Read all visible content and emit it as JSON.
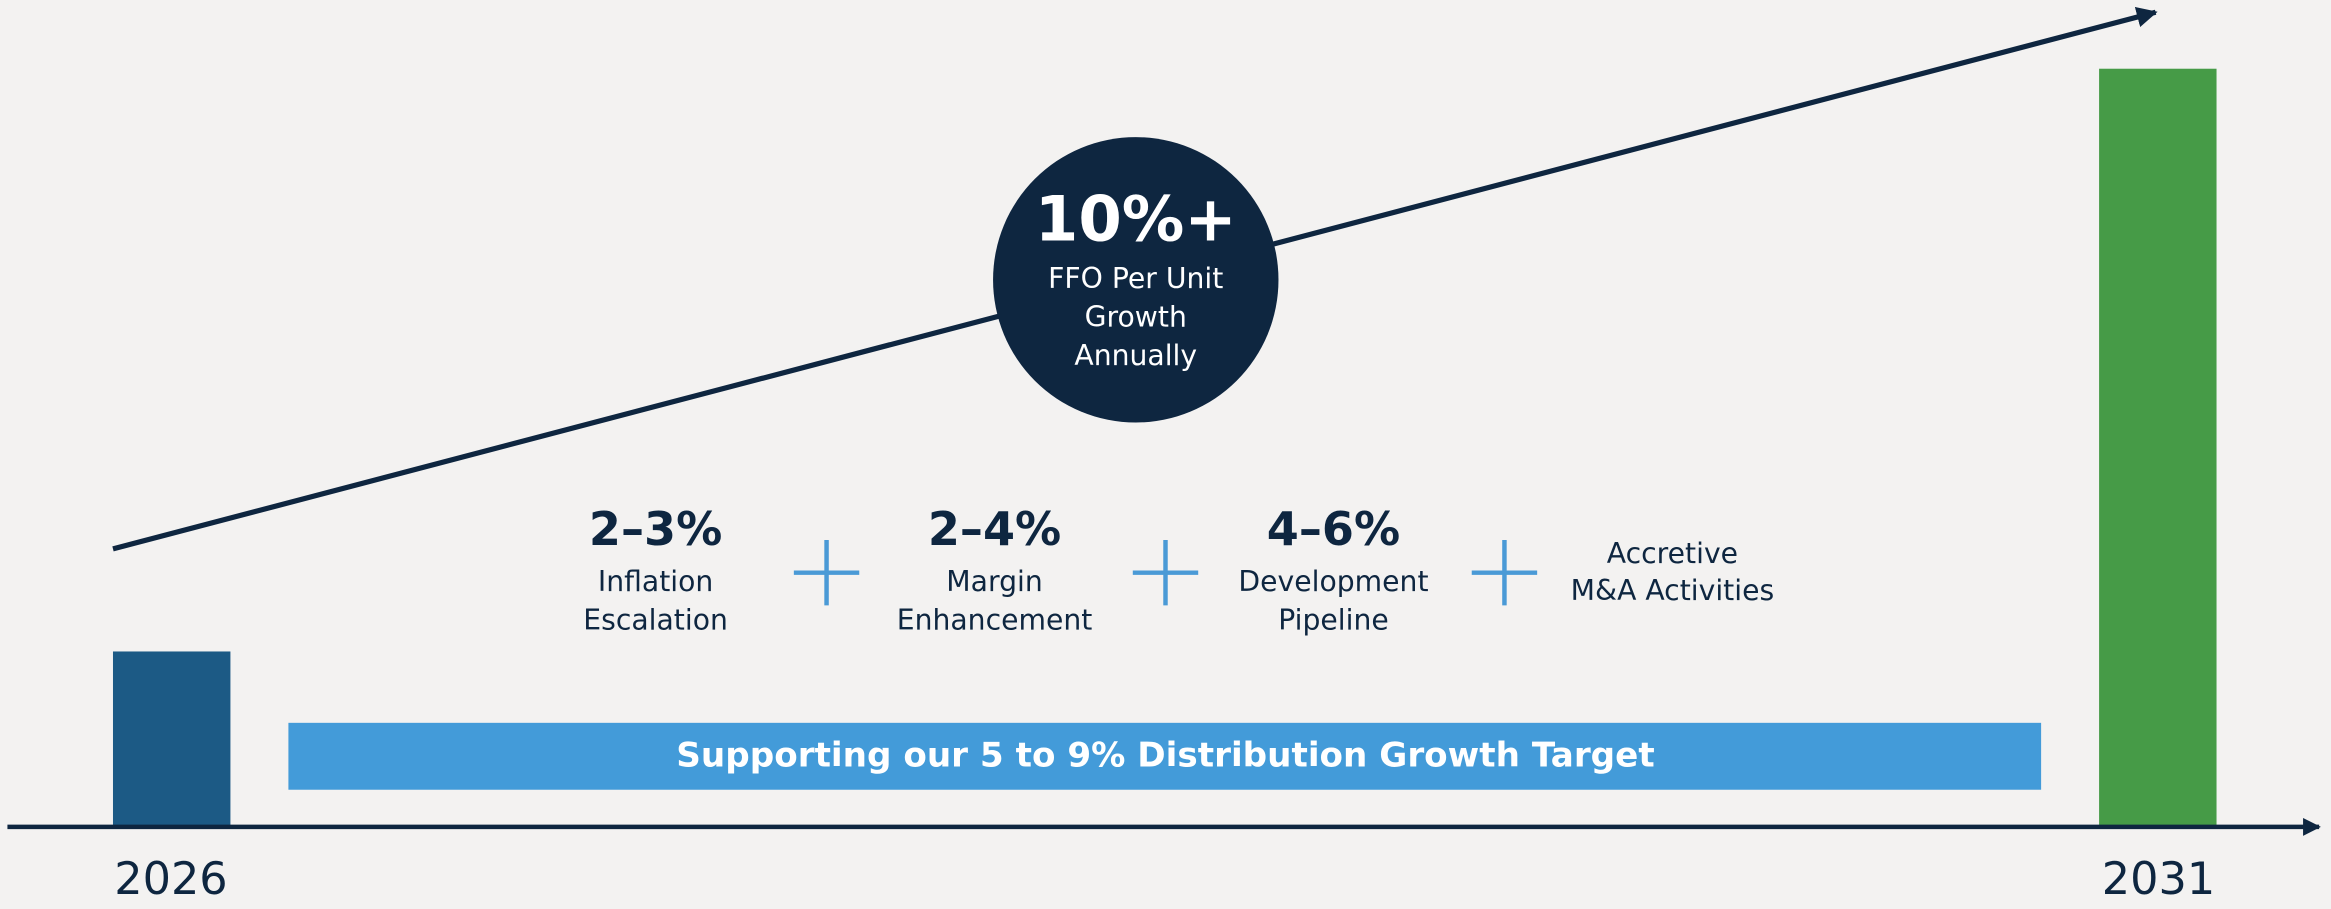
{
  "headline": {
    "value": "10%+",
    "label_lines": [
      "FFO Per Unit",
      "Growth",
      "Annually"
    ]
  },
  "drivers": [
    {
      "value": "2–3%",
      "label_lines": [
        "Inflation",
        "Escalation"
      ]
    },
    {
      "value": "2–4%",
      "label_lines": [
        "Margin",
        "Enhancement"
      ]
    },
    {
      "value": "4–6%",
      "label_lines": [
        "Development",
        "Pipeline"
      ]
    },
    {
      "label_lines": [
        "Accretive",
        "M&A Activities"
      ]
    }
  ],
  "banner": "Supporting our 5 to 9% Distribution Growth Target",
  "years": [
    "2026",
    "2031"
  ]
}
